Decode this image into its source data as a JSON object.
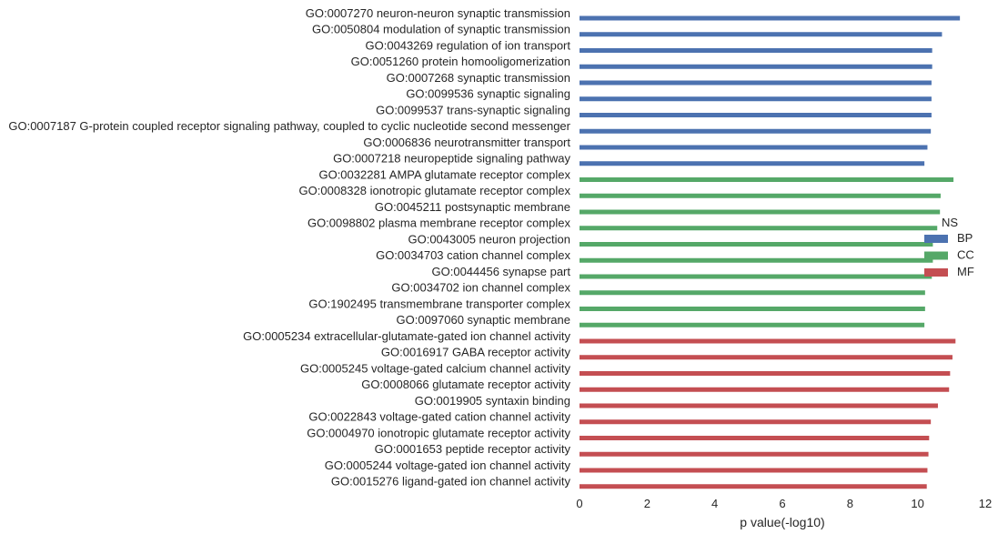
{
  "chart_data": {
    "type": "bar",
    "orientation": "horizontal",
    "categories": [
      "GO:0007270 neuron-neuron synaptic transmission",
      "GO:0050804 modulation of synaptic transmission",
      "GO:0043269 regulation of ion transport",
      "GO:0051260 protein homooligomerization",
      "GO:0007268 synaptic transmission",
      "GO:0099536 synaptic signaling",
      "GO:0099537 trans-synaptic signaling",
      "GO:0007187 G-protein coupled receptor signaling pathway, coupled to cyclic nucleotide second messenger",
      "GO:0006836 neurotransmitter transport",
      "GO:0007218 neuropeptide signaling pathway",
      "GO:0032281 AMPA glutamate receptor complex",
      "GO:0008328 ionotropic glutamate receptor complex",
      "GO:0045211 postsynaptic membrane",
      "GO:0098802 plasma membrane receptor complex",
      "GO:0043005 neuron projection",
      "GO:0034703 cation channel complex",
      "GO:0044456 synapse part",
      "GO:0034702 ion channel complex",
      "GO:1902495 transmembrane transporter complex",
      "GO:0097060 synaptic membrane",
      "GO:0005234 extracellular-glutamate-gated ion channel activity",
      "GO:0016917 GABA receptor activity",
      "GO:0005245 voltage-gated calcium channel activity",
      "GO:0008066 glutamate receptor activity",
      "GO:0019905 syntaxin binding",
      "GO:0022843 voltage-gated cation channel activity",
      "GO:0004970 ionotropic glutamate receptor activity",
      "GO:0001653 peptide receptor activity",
      "GO:0005244 voltage-gated ion channel activity",
      "GO:0015276 ligand-gated ion channel activity"
    ],
    "values": [
      11.25,
      10.72,
      10.43,
      10.43,
      10.41,
      10.41,
      10.41,
      10.39,
      10.29,
      10.2,
      11.06,
      10.68,
      10.66,
      10.58,
      10.45,
      10.45,
      10.42,
      10.22,
      10.22,
      10.2,
      11.12,
      11.03,
      10.96,
      10.93,
      10.6,
      10.39,
      10.34,
      10.32,
      10.29,
      10.27
    ],
    "groups": [
      "BP",
      "BP",
      "BP",
      "BP",
      "BP",
      "BP",
      "BP",
      "BP",
      "BP",
      "BP",
      "CC",
      "CC",
      "CC",
      "CC",
      "CC",
      "CC",
      "CC",
      "CC",
      "CC",
      "CC",
      "MF",
      "MF",
      "MF",
      "MF",
      "MF",
      "MF",
      "MF",
      "MF",
      "MF",
      "MF"
    ],
    "group_colors": {
      "BP": "#4c72b0",
      "CC": "#55a868",
      "MF": "#c44e52"
    },
    "xlabel": "p value(-log10)",
    "ylabel": "",
    "xlim": [
      0,
      12
    ],
    "xticks": [
      0,
      2,
      4,
      6,
      8,
      10,
      12
    ],
    "grid": false,
    "legend": {
      "title": "NS",
      "entries": [
        "BP",
        "CC",
        "MF"
      ],
      "placement": "center-right"
    }
  }
}
